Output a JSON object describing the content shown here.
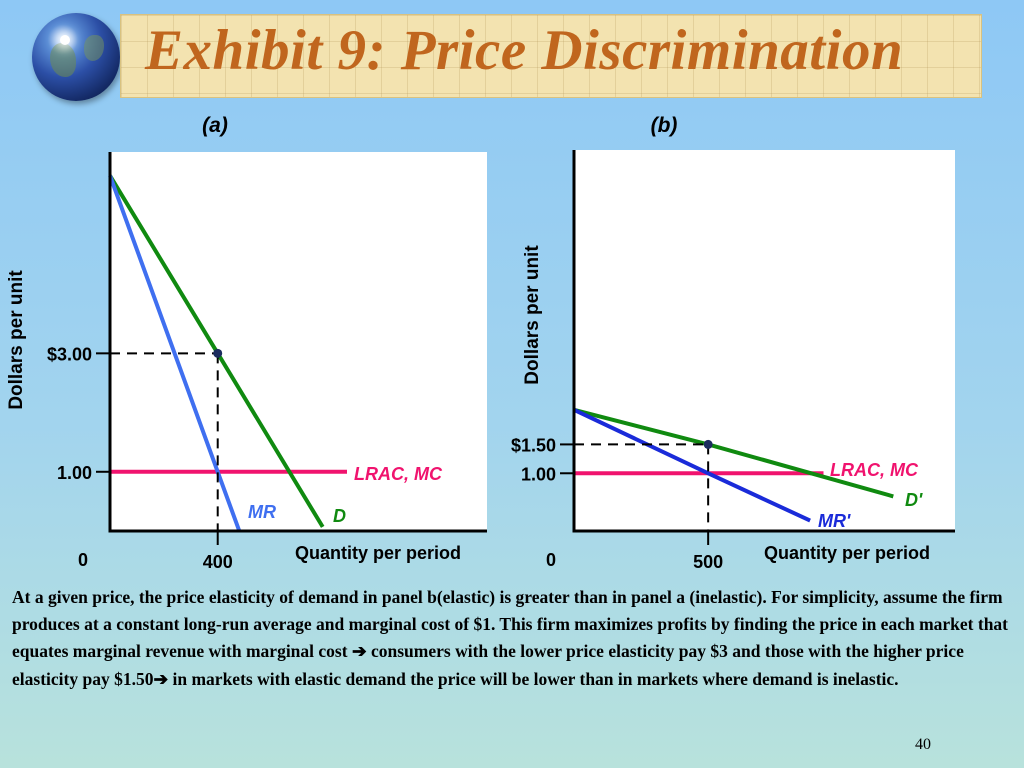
{
  "title": "Exhibit 9: Price Discrimination",
  "caption_parts": [
    "At a given price, the price elasticity of demand in panel b(elastic) is greater than in panel a (inelastic).  For simplicity, assume the firm produces at a constant long-run average and marginal cost of $1.  This firm maximizes profits by finding the price in each market that equates marginal revenue with marginal cost ",
    "➔",
    " consumers with the lower price elasticity pay $3 and those with the higher price elasticity pay $1.50",
    "➔",
    " in markets with elastic demand the price will be lower than in markets where demand is inelastic."
  ],
  "page_number": "40",
  "colors": {
    "demand": "#108a10",
    "marginal_revenue": "#3f6ff0",
    "marginal_revenue_b": "#1a2bd9",
    "cost": "#f0136e",
    "title": "#c0661e"
  },
  "icons": [
    "globe-icon",
    "arrow-right-icon"
  ],
  "chart_data": [
    {
      "type": "line",
      "panel_label": "(a)",
      "xlabel": "Quantity per period",
      "ylabel": "Dollars per unit",
      "x_tick_labels": [
        {
          "value": 0,
          "label": "0"
        },
        {
          "value": 400,
          "label": "400"
        }
      ],
      "y_tick_labels": [
        {
          "value": 3,
          "label": "$3.00"
        },
        {
          "value": 1,
          "label": "1.00"
        }
      ],
      "xlim": [
        0,
        1400
      ],
      "ylim": [
        0,
        6.4
      ],
      "grid": false,
      "series": [
        {
          "name": "D",
          "color_key": "demand",
          "x": [
            0,
            400,
            790
          ],
          "y": [
            6.0,
            3.0,
            0.07
          ]
        },
        {
          "name": "MR",
          "color_key": "marginal_revenue",
          "x": [
            0,
            400,
            480
          ],
          "y": [
            6.0,
            1.0,
            0.0
          ]
        },
        {
          "name": "LRAC, MC",
          "color_key": "cost",
          "x": [
            0,
            880
          ],
          "y": [
            1.0,
            1.0
          ]
        }
      ],
      "equilibrium": {
        "x": 400,
        "y": 3.0
      }
    },
    {
      "type": "line",
      "panel_label": "(b)",
      "xlabel": "Quantity per period",
      "ylabel": "Dollars per unit",
      "x_tick_labels": [
        {
          "value": 0,
          "label": "0"
        },
        {
          "value": 500,
          "label": "500"
        }
      ],
      "y_tick_labels": [
        {
          "value": 1.5,
          "label": "$1.50"
        },
        {
          "value": 1,
          "label": "1.00"
        }
      ],
      "xlim": [
        0,
        1420
      ],
      "ylim": [
        0,
        6.6
      ],
      "grid": false,
      "series": [
        {
          "name": "D'",
          "color_key": "demand",
          "x": [
            0,
            500,
            1190
          ],
          "y": [
            2.1,
            1.5,
            0.6
          ]
        },
        {
          "name": "MR'",
          "color_key": "marginal_revenue_b",
          "x": [
            0,
            500,
            880
          ],
          "y": [
            2.1,
            1.0,
            0.18
          ]
        },
        {
          "name": "LRAC, MC",
          "color_key": "cost",
          "x": [
            0,
            930
          ],
          "y": [
            1.0,
            1.0
          ]
        }
      ],
      "equilibrium": {
        "x": 500,
        "y": 1.5
      }
    }
  ]
}
